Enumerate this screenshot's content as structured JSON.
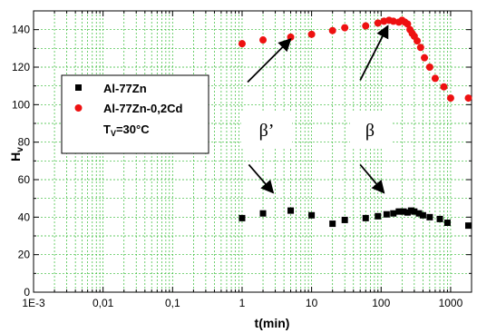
{
  "chart_data": {
    "type": "scatter",
    "x_scale": "log",
    "xlim": [
      0.001,
      2000
    ],
    "ylim": [
      0,
      150
    ],
    "xlabel": "t(min)",
    "ylabel_main": "H",
    "ylabel_sub": "v",
    "x_ticks": [
      {
        "value": 0.001,
        "label": "1E-3"
      },
      {
        "value": 0.01,
        "label": "0,01"
      },
      {
        "value": 0.1,
        "label": "0,1"
      },
      {
        "value": 1,
        "label": "1"
      },
      {
        "value": 10,
        "label": "10"
      },
      {
        "value": 100,
        "label": "100"
      },
      {
        "value": 1000,
        "label": "1000"
      }
    ],
    "y_ticks": [
      0,
      20,
      40,
      60,
      80,
      100,
      120,
      140
    ],
    "grid": true,
    "grid_color": "#33bb33",
    "legend_position": "left",
    "series": [
      {
        "name": "Al-77Zn",
        "marker": "square",
        "color": "#000000",
        "points": [
          [
            1,
            39.5
          ],
          [
            2,
            42
          ],
          [
            5,
            43.5
          ],
          [
            10,
            41
          ],
          [
            20,
            36.5
          ],
          [
            30,
            38.5
          ],
          [
            60,
            39.5
          ],
          [
            90,
            40.5
          ],
          [
            120,
            41.5
          ],
          [
            150,
            42
          ],
          [
            180,
            43
          ],
          [
            210,
            43
          ],
          [
            240,
            42.5
          ],
          [
            270,
            43.5
          ],
          [
            300,
            43
          ],
          [
            350,
            42
          ],
          [
            400,
            41
          ],
          [
            500,
            40
          ],
          [
            700,
            39
          ],
          [
            900,
            37
          ],
          [
            1800,
            35.5
          ]
        ]
      },
      {
        "name": "Al-77Zn-0,2Cd",
        "marker": "circle",
        "color": "#ee1111",
        "points": [
          [
            1,
            132.5
          ],
          [
            2,
            134.5
          ],
          [
            5,
            136
          ],
          [
            10,
            137.5
          ],
          [
            20,
            139.5
          ],
          [
            30,
            141
          ],
          [
            60,
            142
          ],
          [
            90,
            143.5
          ],
          [
            110,
            144.5
          ],
          [
            130,
            145
          ],
          [
            150,
            144.5
          ],
          [
            180,
            144
          ],
          [
            200,
            145
          ],
          [
            220,
            144
          ],
          [
            240,
            143
          ],
          [
            260,
            140
          ],
          [
            280,
            138
          ],
          [
            300,
            136.5
          ],
          [
            330,
            134
          ],
          [
            370,
            130.5
          ],
          [
            420,
            125
          ],
          [
            500,
            120
          ],
          [
            600,
            114
          ],
          [
            800,
            109.5
          ],
          [
            1000,
            103.5
          ],
          [
            1800,
            103.5
          ]
        ]
      }
    ],
    "legend_note_main": "T",
    "legend_note_sub": "V",
    "legend_note_rest": "=30°C",
    "annotations": [
      {
        "text": "β’",
        "arrows": [
          {
            "from_x": 1.2,
            "from_y": 112,
            "to_x": 5,
            "to_y": 135
          },
          {
            "from_x": 1.25,
            "from_y": 68,
            "to_x": 2.8,
            "to_y": 53
          }
        ]
      },
      {
        "text": "β",
        "arrows": [
          {
            "from_x": 50,
            "from_y": 113,
            "to_x": 125,
            "to_y": 142
          },
          {
            "from_x": 50,
            "from_y": 68,
            "to_x": 110,
            "to_y": 53
          }
        ]
      }
    ]
  }
}
